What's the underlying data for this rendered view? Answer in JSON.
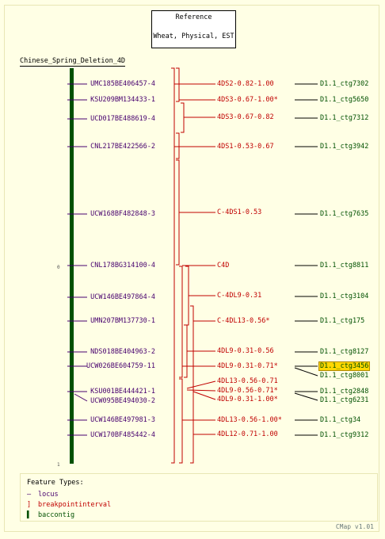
{
  "reference": {
    "line1": "Reference",
    "line2": "Wheat, Physical, EST"
  },
  "map_title": "Chinese_Spring_Deletion_4D",
  "axis": {
    "top": "0",
    "bottom": "1"
  },
  "loci": [
    "UMC185BE406457-4",
    "KSU209BM134433-1",
    "UCD017BE488619-4",
    "CNL217BE422566-2",
    "UCW168BF482848-3",
    "CNL178BG314100-4",
    "UCW146BE497864-4",
    "UMN207BM137730-1",
    "NDS018BE404963-2",
    "UCW026BE604759-11",
    "KSU001BE444421-1",
    "UCW095BE494030-2",
    "UCW146BE497981-3",
    "UCW170BF485442-4"
  ],
  "breakpoints": [
    "4DS2-0.82-1.00",
    "4DS3-0.67-1.00*",
    "4DS3-0.67-0.82",
    "4DS1-0.53-0.67",
    "C-4DS1-0.53",
    "C4D",
    "C-4DL9-0.31",
    "C-4DL13-0.56*",
    "4DL9-0.31-0.56",
    "4DL9-0.31-0.71*",
    "4DL13-0.56-0.71",
    "4DL9-0.56-0.71*",
    "4DL9-0.31-1.00*",
    "4DL13-0.56-1.00*",
    "4DL12-0.71-1.00"
  ],
  "contigs": [
    "D1.1_ctg7302",
    "D1.1_ctg5650",
    "D1.1_ctg7312",
    "D1.1_ctg3942",
    "D1.1_ctg7635",
    "D1.1_ctg8811",
    "D1.1_ctg3104",
    "D1.1_ctg175",
    "D1.1_ctg8127",
    "D1.1_ctg3456",
    "D1.1_ctg8001",
    "D1.1_ctg2848",
    "D1.1_ctg6231",
    "D1.1_ctg34",
    "D1.1_ctg9312"
  ],
  "legend": {
    "header": "Feature Types:",
    "items": [
      "locus",
      "breakpointinterval",
      "baccontig"
    ]
  },
  "footer": "CMap v1.01",
  "colors": {
    "locus": "#47006e",
    "breakpoint": "#c00000",
    "baccontig": "#005000",
    "highlight": "#ffd700"
  }
}
